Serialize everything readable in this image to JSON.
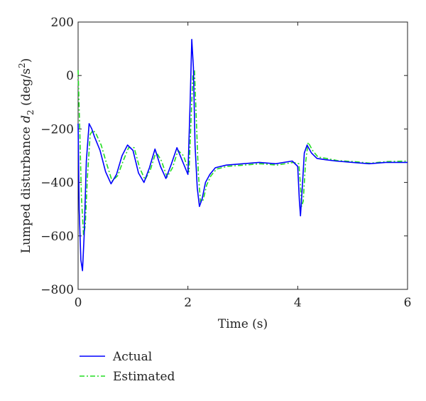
{
  "chart_data": {
    "type": "line",
    "xlabel": "Time (s)",
    "ylabel_main": "Lumped disturbance ",
    "ylabel_var": "d",
    "ylabel_sub": "2",
    "ylabel_unit_open": " (deg/s",
    "ylabel_unit_sup": "2",
    "ylabel_unit_close": ")",
    "xlim": [
      0,
      6
    ],
    "ylim": [
      -800,
      200
    ],
    "xticks": [
      "0",
      "2",
      "4",
      "6"
    ],
    "yticks": [
      "200",
      "0",
      "−200",
      "−400",
      "−600",
      "−800"
    ],
    "grid": false,
    "legend_position": "bottom-left, below axes",
    "series": [
      {
        "name": "Actual",
        "color": "#0000ff",
        "style": "solid",
        "x": [
          0,
          0.02,
          0.05,
          0.08,
          0.11,
          0.15,
          0.2,
          0.25,
          0.3,
          0.4,
          0.5,
          0.6,
          0.7,
          0.8,
          0.9,
          1.0,
          1.1,
          1.2,
          1.3,
          1.4,
          1.5,
          1.6,
          1.7,
          1.8,
          1.9,
          2.0,
          2.04,
          2.07,
          2.1,
          2.13,
          2.17,
          2.21,
          2.26,
          2.32,
          2.4,
          2.5,
          2.7,
          3.0,
          3.3,
          3.6,
          3.9,
          4.0,
          4.03,
          4.05,
          4.08,
          4.12,
          4.17,
          4.25,
          4.35,
          4.5,
          4.7,
          5.0,
          5.3,
          5.6,
          6.0
        ],
        "y": [
          -180,
          -500,
          -690,
          -730,
          -600,
          -320,
          -180,
          -200,
          -230,
          -280,
          -360,
          -405,
          -370,
          -300,
          -260,
          -280,
          -365,
          -400,
          -345,
          -275,
          -340,
          -385,
          -330,
          -270,
          -320,
          -370,
          -100,
          135,
          30,
          -260,
          -420,
          -490,
          -460,
          -400,
          -370,
          -345,
          -335,
          -330,
          -325,
          -330,
          -320,
          -340,
          -470,
          -525,
          -430,
          -290,
          -260,
          -290,
          -310,
          -315,
          -320,
          -325,
          -330,
          -325,
          -325
        ]
      },
      {
        "name": "Estimated",
        "color": "#22dd22",
        "style": "dashdot",
        "x": [
          0,
          0.03,
          0.06,
          0.1,
          0.13,
          0.17,
          0.22,
          0.27,
          0.32,
          0.42,
          0.52,
          0.62,
          0.72,
          0.82,
          0.92,
          1.02,
          1.12,
          1.22,
          1.32,
          1.42,
          1.52,
          1.62,
          1.72,
          1.82,
          1.92,
          2.02,
          2.06,
          2.09,
          2.12,
          2.15,
          2.19,
          2.23,
          2.28,
          2.34,
          2.42,
          2.52,
          2.72,
          3.02,
          3.32,
          3.62,
          3.92,
          4.02,
          4.05,
          4.07,
          4.1,
          4.14,
          4.19,
          4.27,
          4.37,
          4.52,
          4.72,
          5.02,
          5.32,
          5.62,
          6.0
        ],
        "y": [
          20,
          -200,
          -450,
          -600,
          -560,
          -380,
          -220,
          -205,
          -215,
          -260,
          -330,
          -395,
          -375,
          -320,
          -270,
          -270,
          -345,
          -390,
          -350,
          -285,
          -320,
          -380,
          -345,
          -280,
          -300,
          -360,
          -150,
          0,
          20,
          -150,
          -370,
          -475,
          -465,
          -410,
          -375,
          -350,
          -340,
          -335,
          -330,
          -335,
          -325,
          -330,
          -410,
          -490,
          -470,
          -330,
          -250,
          -280,
          -305,
          -310,
          -318,
          -322,
          -328,
          -322,
          -320
        ]
      }
    ]
  }
}
